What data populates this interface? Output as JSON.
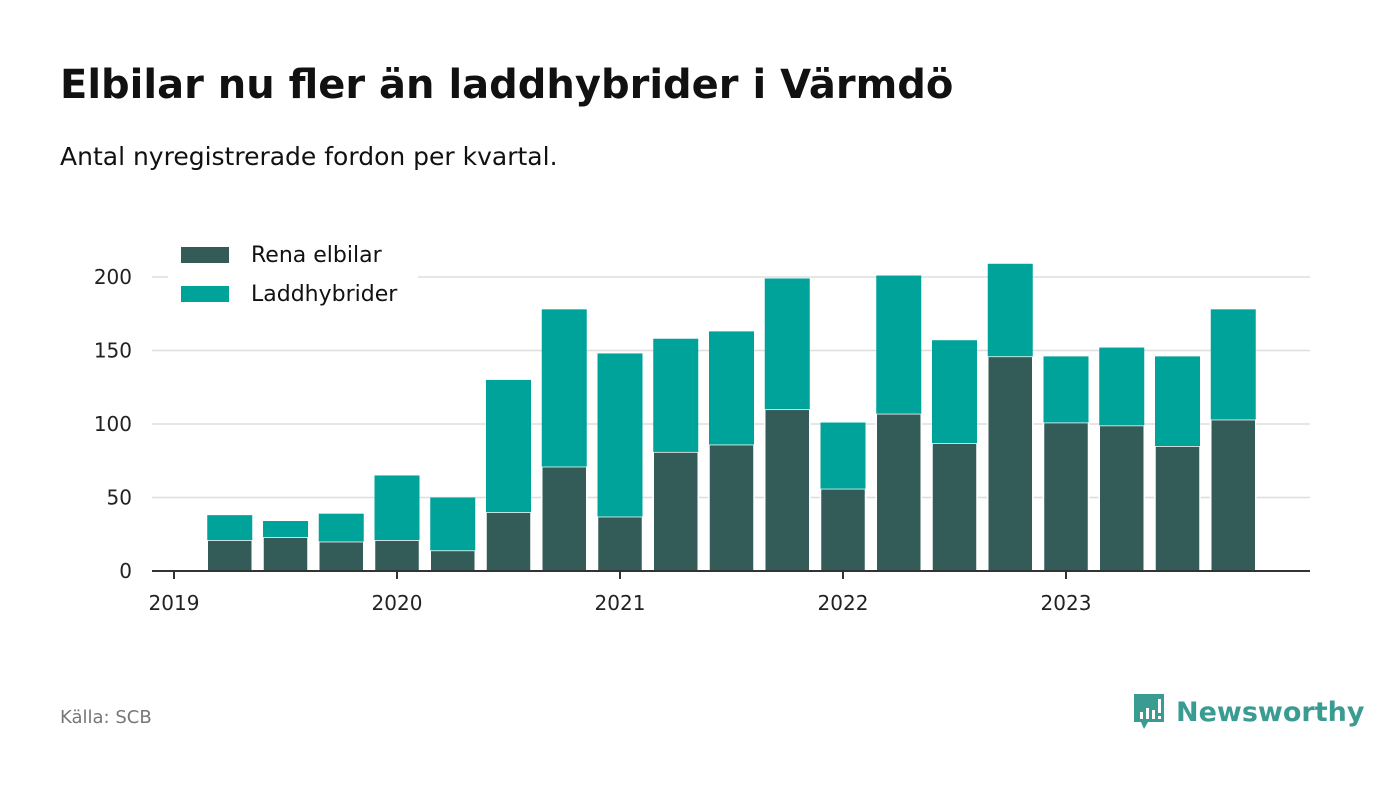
{
  "title": "Elbilar nu fler än laddhybrider i Värmdö",
  "subtitle": "Antal nyregistrerade fordon per kvartal.",
  "source": "Källa: SCB",
  "logo": "Newsworthy",
  "colors": {
    "elbilar": "#335c58",
    "laddhybrider": "#00a39a",
    "logo": "#3a9b93"
  },
  "chart_data": {
    "type": "bar",
    "stacked": true,
    "title": "Elbilar nu fler än laddhybrider i Värmdö",
    "xlabel": "",
    "ylabel": "",
    "ylim": [
      0,
      210
    ],
    "yticks": [
      0,
      50,
      100,
      150,
      200
    ],
    "xticks": [
      2019,
      2020,
      2021,
      2022,
      2023
    ],
    "xlim": [
      2019,
      2024
    ],
    "grid": true,
    "legend": "top-left",
    "x": [
      2019.25,
      2019.5,
      2019.75,
      2020,
      2020.25,
      2020.5,
      2020.75,
      2021,
      2021.25,
      2021.5,
      2021.75,
      2022,
      2022.25,
      2022.5,
      2022.75,
      2023,
      2023.25,
      2023.5,
      2023.75
    ],
    "series": [
      {
        "name": "Rena elbilar",
        "values": [
          21,
          23,
          20,
          21,
          14,
          40,
          71,
          37,
          81,
          86,
          110,
          56,
          107,
          87,
          146,
          101,
          99,
          85,
          103
        ]
      },
      {
        "name": "Laddhybrider",
        "values": [
          17,
          11,
          19,
          44,
          36,
          90,
          107,
          111,
          77,
          77,
          89,
          45,
          94,
          70,
          63,
          45,
          53,
          61,
          75
        ]
      }
    ]
  }
}
